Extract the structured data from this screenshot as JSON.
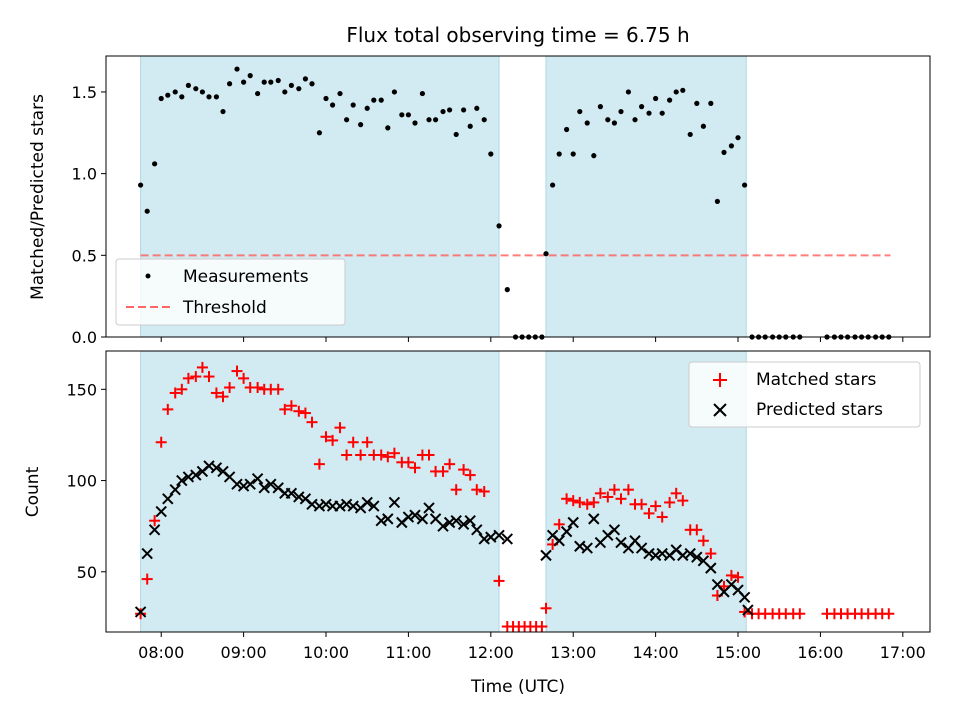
{
  "chart_data": {
    "title": "Flux total observing time = 6.75 h",
    "xlabel": "Time (UTC)",
    "x_unit": "hours UTC",
    "xlim": [
      7.33,
      17.33
    ],
    "x_ticks": [
      {
        "value": 8,
        "label": "08:00"
      },
      {
        "value": 9,
        "label": "09:00"
      },
      {
        "value": 10,
        "label": "10:00"
      },
      {
        "value": 11,
        "label": "11:00"
      },
      {
        "value": 12,
        "label": "12:00"
      },
      {
        "value": 13,
        "label": "13:00"
      },
      {
        "value": 14,
        "label": "14:00"
      },
      {
        "value": 15,
        "label": "15:00"
      },
      {
        "value": 16,
        "label": "16:00"
      },
      {
        "value": 17,
        "label": "17:00"
      }
    ],
    "shaded_intervals": [
      [
        7.75,
        12.1
      ],
      [
        12.67,
        15.1
      ]
    ],
    "colors": {
      "shade": "#add8e6",
      "measurement": "#000000",
      "threshold": "#ff6666",
      "matched": "#ff0000",
      "predicted": "#000000"
    },
    "top": {
      "type": "scatter",
      "ylabel": "Matched/Predicted stars",
      "ylim": [
        0,
        1.72
      ],
      "y_ticks": [
        {
          "value": 0,
          "label": "0.0"
        },
        {
          "value": 0.5,
          "label": "0.5"
        },
        {
          "value": 1.0,
          "label": "1.0"
        },
        {
          "value": 1.5,
          "label": "1.5"
        }
      ],
      "threshold": {
        "value": 0.5,
        "x_range": [
          7.75,
          16.85
        ]
      },
      "legend": {
        "position": "lower-left",
        "items": [
          "Measurements",
          "Threshold"
        ]
      },
      "measurements": [
        [
          7.75,
          0.93
        ],
        [
          7.83,
          0.77
        ],
        [
          7.92,
          1.06
        ],
        [
          8.0,
          1.46
        ],
        [
          8.08,
          1.48
        ],
        [
          8.17,
          1.5
        ],
        [
          8.25,
          1.47
        ],
        [
          8.33,
          1.54
        ],
        [
          8.42,
          1.52
        ],
        [
          8.5,
          1.5
        ],
        [
          8.58,
          1.47
        ],
        [
          8.67,
          1.47
        ],
        [
          8.75,
          1.38
        ],
        [
          8.83,
          1.55
        ],
        [
          8.92,
          1.64
        ],
        [
          9.0,
          1.56
        ],
        [
          9.08,
          1.6
        ],
        [
          9.17,
          1.49
        ],
        [
          9.25,
          1.56
        ],
        [
          9.33,
          1.56
        ],
        [
          9.42,
          1.57
        ],
        [
          9.5,
          1.5
        ],
        [
          9.58,
          1.54
        ],
        [
          9.67,
          1.52
        ],
        [
          9.75,
          1.58
        ],
        [
          9.83,
          1.55
        ],
        [
          9.92,
          1.25
        ],
        [
          10.0,
          1.46
        ],
        [
          10.08,
          1.42
        ],
        [
          10.17,
          1.49
        ],
        [
          10.25,
          1.33
        ],
        [
          10.33,
          1.42
        ],
        [
          10.42,
          1.3
        ],
        [
          10.5,
          1.4
        ],
        [
          10.58,
          1.45
        ],
        [
          10.67,
          1.45
        ],
        [
          10.75,
          1.28
        ],
        [
          10.83,
          1.5
        ],
        [
          10.92,
          1.36
        ],
        [
          11.0,
          1.36
        ],
        [
          11.08,
          1.31
        ],
        [
          11.17,
          1.49
        ],
        [
          11.25,
          1.33
        ],
        [
          11.33,
          1.33
        ],
        [
          11.42,
          1.38
        ],
        [
          11.5,
          1.39
        ],
        [
          11.58,
          1.24
        ],
        [
          11.67,
          1.39
        ],
        [
          11.75,
          1.29
        ],
        [
          11.83,
          1.4
        ],
        [
          11.92,
          1.33
        ],
        [
          12.0,
          1.12
        ],
        [
          12.1,
          0.68
        ],
        [
          12.2,
          0.29
        ],
        [
          12.3,
          0
        ],
        [
          12.38,
          0
        ],
        [
          12.46,
          0
        ],
        [
          12.54,
          0
        ],
        [
          12.62,
          0
        ],
        [
          12.67,
          0.51
        ],
        [
          12.75,
          0.93
        ],
        [
          12.83,
          1.12
        ],
        [
          12.92,
          1.27
        ],
        [
          13.0,
          1.12
        ],
        [
          13.08,
          1.38
        ],
        [
          13.17,
          1.31
        ],
        [
          13.25,
          1.11
        ],
        [
          13.33,
          1.41
        ],
        [
          13.42,
          1.33
        ],
        [
          13.5,
          1.31
        ],
        [
          13.58,
          1.38
        ],
        [
          13.67,
          1.5
        ],
        [
          13.75,
          1.33
        ],
        [
          13.83,
          1.41
        ],
        [
          13.92,
          1.37
        ],
        [
          14.0,
          1.46
        ],
        [
          14.08,
          1.37
        ],
        [
          14.17,
          1.45
        ],
        [
          14.25,
          1.5
        ],
        [
          14.33,
          1.51
        ],
        [
          14.42,
          1.24
        ],
        [
          14.5,
          1.43
        ],
        [
          14.58,
          1.29
        ],
        [
          14.67,
          1.43
        ],
        [
          14.75,
          0.83
        ],
        [
          14.83,
          1.13
        ],
        [
          14.92,
          1.17
        ],
        [
          15.0,
          1.22
        ],
        [
          15.08,
          0.93
        ],
        [
          15.17,
          0
        ],
        [
          15.25,
          0
        ],
        [
          15.33,
          0
        ],
        [
          15.42,
          0
        ],
        [
          15.5,
          0
        ],
        [
          15.58,
          0
        ],
        [
          15.67,
          0
        ],
        [
          15.75,
          0
        ],
        [
          16.08,
          0
        ],
        [
          16.17,
          0
        ],
        [
          16.25,
          0
        ],
        [
          16.33,
          0
        ],
        [
          16.42,
          0
        ],
        [
          16.5,
          0
        ],
        [
          16.58,
          0
        ],
        [
          16.67,
          0
        ],
        [
          16.75,
          0
        ],
        [
          16.83,
          0
        ]
      ]
    },
    "bottom": {
      "type": "scatter",
      "ylabel": "Count",
      "ylim": [
        17,
        171
      ],
      "y_ticks": [
        {
          "value": 50,
          "label": "50"
        },
        {
          "value": 100,
          "label": "100"
        },
        {
          "value": 150,
          "label": "150"
        }
      ],
      "legend": {
        "position": "upper-right",
        "items": [
          "Matched stars",
          "Predicted stars"
        ]
      },
      "matched_stars": [
        [
          7.75,
          27
        ],
        [
          7.83,
          46
        ],
        [
          7.92,
          78
        ],
        [
          8.0,
          121
        ],
        [
          8.08,
          139
        ],
        [
          8.17,
          148
        ],
        [
          8.25,
          150
        ],
        [
          8.33,
          156
        ],
        [
          8.42,
          157
        ],
        [
          8.5,
          162
        ],
        [
          8.58,
          157
        ],
        [
          8.67,
          148
        ],
        [
          8.75,
          146
        ],
        [
          8.83,
          151
        ],
        [
          8.92,
          160
        ],
        [
          9.0,
          156
        ],
        [
          9.08,
          151
        ],
        [
          9.17,
          151
        ],
        [
          9.25,
          150
        ],
        [
          9.33,
          150
        ],
        [
          9.42,
          150
        ],
        [
          9.5,
          139
        ],
        [
          9.58,
          141
        ],
        [
          9.67,
          138
        ],
        [
          9.75,
          137
        ],
        [
          9.83,
          132
        ],
        [
          9.92,
          109
        ],
        [
          10.0,
          124
        ],
        [
          10.08,
          122
        ],
        [
          10.17,
          129
        ],
        [
          10.25,
          114
        ],
        [
          10.33,
          121
        ],
        [
          10.42,
          114
        ],
        [
          10.5,
          121
        ],
        [
          10.58,
          114
        ],
        [
          10.67,
          114
        ],
        [
          10.75,
          113
        ],
        [
          10.83,
          115
        ],
        [
          10.92,
          110
        ],
        [
          11.0,
          110
        ],
        [
          11.08,
          107
        ],
        [
          11.17,
          114
        ],
        [
          11.25,
          114
        ],
        [
          11.33,
          105
        ],
        [
          11.42,
          105
        ],
        [
          11.5,
          109
        ],
        [
          11.58,
          95
        ],
        [
          11.67,
          106
        ],
        [
          11.75,
          103
        ],
        [
          11.83,
          95
        ],
        [
          11.92,
          94
        ],
        [
          12.1,
          45
        ],
        [
          12.2,
          20
        ],
        [
          12.27,
          20
        ],
        [
          12.34,
          20
        ],
        [
          12.41,
          20
        ],
        [
          12.48,
          20
        ],
        [
          12.55,
          20
        ],
        [
          12.62,
          20
        ],
        [
          12.67,
          30
        ],
        [
          12.75,
          65
        ],
        [
          12.83,
          76
        ],
        [
          12.92,
          90
        ],
        [
          13.0,
          89
        ],
        [
          13.08,
          88
        ],
        [
          13.17,
          87
        ],
        [
          13.25,
          88
        ],
        [
          13.33,
          93
        ],
        [
          13.42,
          91
        ],
        [
          13.5,
          95
        ],
        [
          13.58,
          90
        ],
        [
          13.67,
          95
        ],
        [
          13.75,
          87
        ],
        [
          13.83,
          87
        ],
        [
          13.92,
          82
        ],
        [
          14.0,
          86
        ],
        [
          14.08,
          80
        ],
        [
          14.17,
          88
        ],
        [
          14.25,
          93
        ],
        [
          14.33,
          89
        ],
        [
          14.42,
          73
        ],
        [
          14.5,
          73
        ],
        [
          14.58,
          67
        ],
        [
          14.67,
          60
        ],
        [
          14.75,
          37
        ],
        [
          14.83,
          42
        ],
        [
          14.92,
          48
        ],
        [
          15.0,
          47
        ],
        [
          15.08,
          28
        ],
        [
          15.17,
          27
        ],
        [
          15.25,
          27
        ],
        [
          15.33,
          27
        ],
        [
          15.42,
          27
        ],
        [
          15.5,
          27
        ],
        [
          15.58,
          27
        ],
        [
          15.67,
          27
        ],
        [
          15.75,
          27
        ],
        [
          16.08,
          27
        ],
        [
          16.17,
          27
        ],
        [
          16.25,
          27
        ],
        [
          16.33,
          27
        ],
        [
          16.42,
          27
        ],
        [
          16.5,
          27
        ],
        [
          16.58,
          27
        ],
        [
          16.67,
          27
        ],
        [
          16.75,
          27
        ],
        [
          16.83,
          27
        ]
      ],
      "predicted_stars": [
        [
          7.75,
          28
        ],
        [
          7.83,
          60
        ],
        [
          7.92,
          73
        ],
        [
          8.0,
          83
        ],
        [
          8.08,
          90
        ],
        [
          8.17,
          95
        ],
        [
          8.25,
          100
        ],
        [
          8.33,
          102
        ],
        [
          8.42,
          103
        ],
        [
          8.5,
          105
        ],
        [
          8.58,
          108
        ],
        [
          8.67,
          107
        ],
        [
          8.75,
          105
        ],
        [
          8.83,
          102
        ],
        [
          8.92,
          98
        ],
        [
          9.0,
          97
        ],
        [
          9.08,
          98
        ],
        [
          9.17,
          101
        ],
        [
          9.25,
          96
        ],
        [
          9.33,
          98
        ],
        [
          9.42,
          96
        ],
        [
          9.5,
          93
        ],
        [
          9.58,
          93
        ],
        [
          9.67,
          91
        ],
        [
          9.75,
          90
        ],
        [
          9.83,
          87
        ],
        [
          9.92,
          86
        ],
        [
          10.0,
          87
        ],
        [
          10.08,
          86
        ],
        [
          10.17,
          86
        ],
        [
          10.25,
          87
        ],
        [
          10.33,
          86
        ],
        [
          10.42,
          85
        ],
        [
          10.5,
          88
        ],
        [
          10.58,
          86
        ],
        [
          10.67,
          78
        ],
        [
          10.75,
          79
        ],
        [
          10.83,
          88
        ],
        [
          10.92,
          77
        ],
        [
          11.0,
          80
        ],
        [
          11.08,
          81
        ],
        [
          11.17,
          79
        ],
        [
          11.25,
          85
        ],
        [
          11.33,
          79
        ],
        [
          11.42,
          75
        ],
        [
          11.5,
          77
        ],
        [
          11.58,
          78
        ],
        [
          11.67,
          76
        ],
        [
          11.75,
          78
        ],
        [
          11.83,
          73
        ],
        [
          11.92,
          68
        ],
        [
          12.0,
          69
        ],
        [
          12.1,
          70
        ],
        [
          12.2,
          68
        ],
        [
          12.67,
          59
        ],
        [
          12.75,
          70
        ],
        [
          12.83,
          67
        ],
        [
          12.92,
          72
        ],
        [
          13.0,
          77
        ],
        [
          13.08,
          64
        ],
        [
          13.17,
          63
        ],
        [
          13.25,
          79
        ],
        [
          13.33,
          66
        ],
        [
          13.42,
          70
        ],
        [
          13.5,
          73
        ],
        [
          13.58,
          66
        ],
        [
          13.67,
          63
        ],
        [
          13.75,
          67
        ],
        [
          13.83,
          63
        ],
        [
          13.92,
          60
        ],
        [
          14.0,
          59
        ],
        [
          14.08,
          60
        ],
        [
          14.17,
          59
        ],
        [
          14.25,
          62
        ],
        [
          14.33,
          59
        ],
        [
          14.42,
          60
        ],
        [
          14.5,
          58
        ],
        [
          14.58,
          56
        ],
        [
          14.67,
          52
        ],
        [
          14.75,
          43
        ],
        [
          14.83,
          39
        ],
        [
          14.92,
          43
        ],
        [
          15.0,
          40
        ],
        [
          15.08,
          36
        ],
        [
          15.12,
          29
        ]
      ]
    }
  }
}
